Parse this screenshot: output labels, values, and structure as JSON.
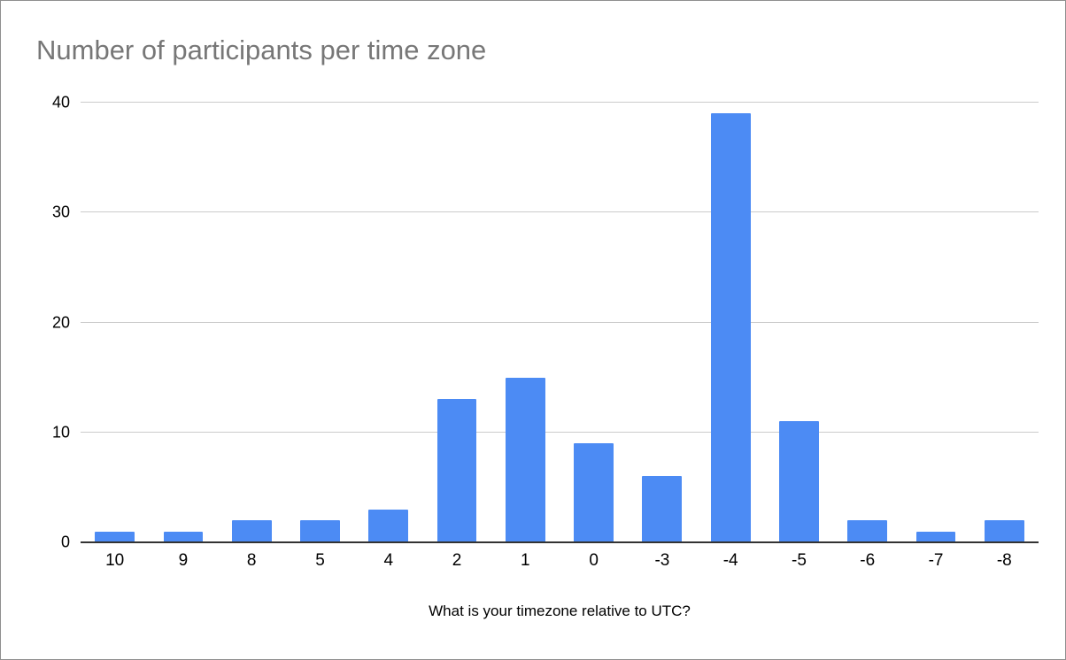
{
  "chart_data": {
    "type": "bar",
    "title": "Number of participants per time zone",
    "xlabel": "What is your timezone relative to UTC?",
    "ylabel": "",
    "categories": [
      "10",
      "9",
      "8",
      "5",
      "4",
      "2",
      "1",
      "0",
      "-3",
      "-4",
      "-5",
      "-6",
      "-7",
      "-8"
    ],
    "values": [
      1,
      1,
      2,
      2,
      3,
      13,
      15,
      9,
      6,
      39,
      11,
      2,
      1,
      2
    ],
    "ylim": [
      0,
      40
    ],
    "yticks": [
      0,
      10,
      20,
      30,
      40
    ],
    "grid": true,
    "legend": "none",
    "bar_color": "#4c8bf4",
    "grid_color": "#cccccc",
    "axis_color": "#333333",
    "title_color": "#777777"
  }
}
